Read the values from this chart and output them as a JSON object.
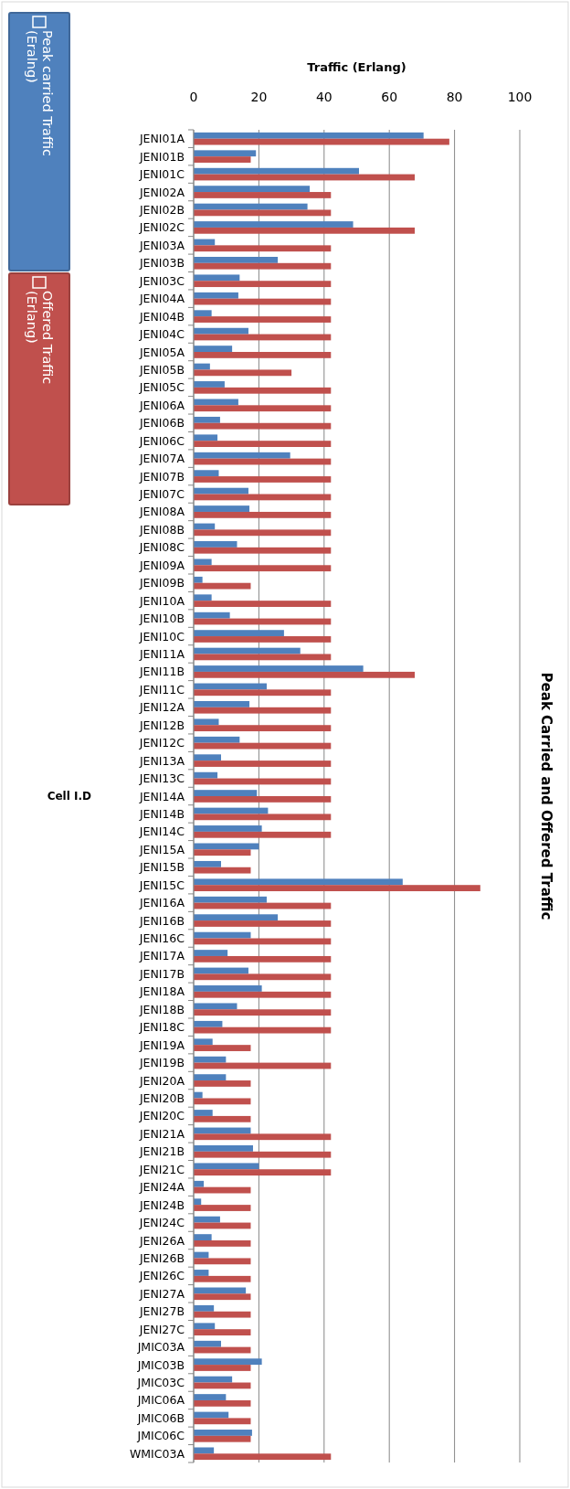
{
  "chart_data": {
    "type": "bar",
    "orientation": "horizontal",
    "title": "Peak Carried and Offered Traffic",
    "xlabel": "Traffic (Erlang)",
    "ylabel": "Cell I.D",
    "categories": [
      "JENI01A",
      "JENI01B",
      "JENI01C",
      "JENI02A",
      "JENI02B",
      "JENI02C",
      "JENI03A",
      "JENI03B",
      "JENI03C",
      "JENI04A",
      "JENI04B",
      "JENI04C",
      "JENI05A",
      "JENI05B",
      "JENI05C",
      "JENI06A",
      "JENI06B",
      "JENI06C",
      "JENI07A",
      "JENI07B",
      "JENI07C",
      "JENI08A",
      "JENI08B",
      "JENI08C",
      "JENI09A",
      "JENI09B",
      "JENI10A",
      "JENI10B",
      "JENI10C",
      "JENI11A",
      "JENI11B",
      "JENI11C",
      "JENI12A",
      "JENI12B",
      "JENI12C",
      "JENI13A",
      "JENI13C",
      "JENI14A",
      "JENI14B",
      "JENI14C",
      "JENI15A",
      "JENI15B",
      "JENI15C",
      "JENI16A",
      "JENI16B",
      "JENI16C",
      "JENI17A",
      "JENI17B",
      "JENI18A",
      "JENI18B",
      "JENI18C",
      "JENI19A",
      "JENI19B",
      "JENI20A",
      "JENI20B",
      "JENI20C",
      "JENI21A",
      "JENI21B",
      "JENI21C",
      "JENI24A",
      "JENI24B",
      "JENI24C",
      "JENI26A",
      "JENI26B",
      "JENI26C",
      "JENI27A",
      "JENI27B",
      "JENI27C",
      "JMIC03A",
      "JMIC03B",
      "JMIC03C",
      "JMIC06A",
      "JMIC06B",
      "JMIC06C",
      "WMIC03A"
    ],
    "series": [
      {
        "name": "Peak carried Traffic (Eralng)",
        "color": "#4f81bd",
        "values": [
          70.5,
          19.1,
          50.7,
          35.6,
          34.9,
          48.9,
          6.5,
          25.8,
          14.1,
          13.7,
          5.5,
          16.8,
          11.8,
          5.0,
          9.5,
          13.7,
          8.1,
          7.3,
          29.6,
          7.7,
          16.8,
          17.1,
          6.5,
          13.3,
          5.5,
          2.7,
          5.5,
          11.1,
          27.7,
          32.7,
          52.0,
          22.4,
          17.1,
          7.7,
          14.1,
          8.4,
          7.3,
          19.4,
          22.8,
          20.9,
          20.0,
          8.4,
          64.1,
          22.4,
          25.8,
          17.5,
          10.4,
          16.8,
          20.9,
          13.3,
          8.8,
          5.8,
          9.9,
          9.9,
          2.7,
          5.8,
          17.5,
          18.2,
          20.0,
          3.1,
          2.3,
          8.1,
          5.5,
          4.6,
          4.6,
          16.0,
          6.2,
          6.5,
          8.4,
          20.9,
          11.8,
          9.9,
          10.7,
          17.9,
          6.2
        ]
      },
      {
        "name": "Offered Traffic (Erlang)",
        "color": "#c0504d",
        "values": [
          78.4,
          17.5,
          67.8,
          42.1,
          42.1,
          67.8,
          42.1,
          42.1,
          42.1,
          42.1,
          42.1,
          42.1,
          42.1,
          30.0,
          42.1,
          42.1,
          42.1,
          42.1,
          42.1,
          42.1,
          42.1,
          42.1,
          42.1,
          42.1,
          42.1,
          17.5,
          42.1,
          42.1,
          42.1,
          42.1,
          67.8,
          42.1,
          42.1,
          42.1,
          42.1,
          42.1,
          42.1,
          42.1,
          42.1,
          42.1,
          17.5,
          17.5,
          87.9,
          42.1,
          42.1,
          42.1,
          42.1,
          42.1,
          42.1,
          42.1,
          42.1,
          17.5,
          42.1,
          17.5,
          17.5,
          17.5,
          42.1,
          42.1,
          42.1,
          17.5,
          17.5,
          17.5,
          17.5,
          17.5,
          17.5,
          17.5,
          17.5,
          17.5,
          17.5,
          17.5,
          17.5,
          17.5,
          17.5,
          17.5,
          42.1
        ]
      }
    ],
    "xlim": [
      0,
      100
    ],
    "xticks": [
      0,
      20,
      40,
      60,
      80,
      100
    ],
    "grid": "x",
    "legend": "left"
  }
}
